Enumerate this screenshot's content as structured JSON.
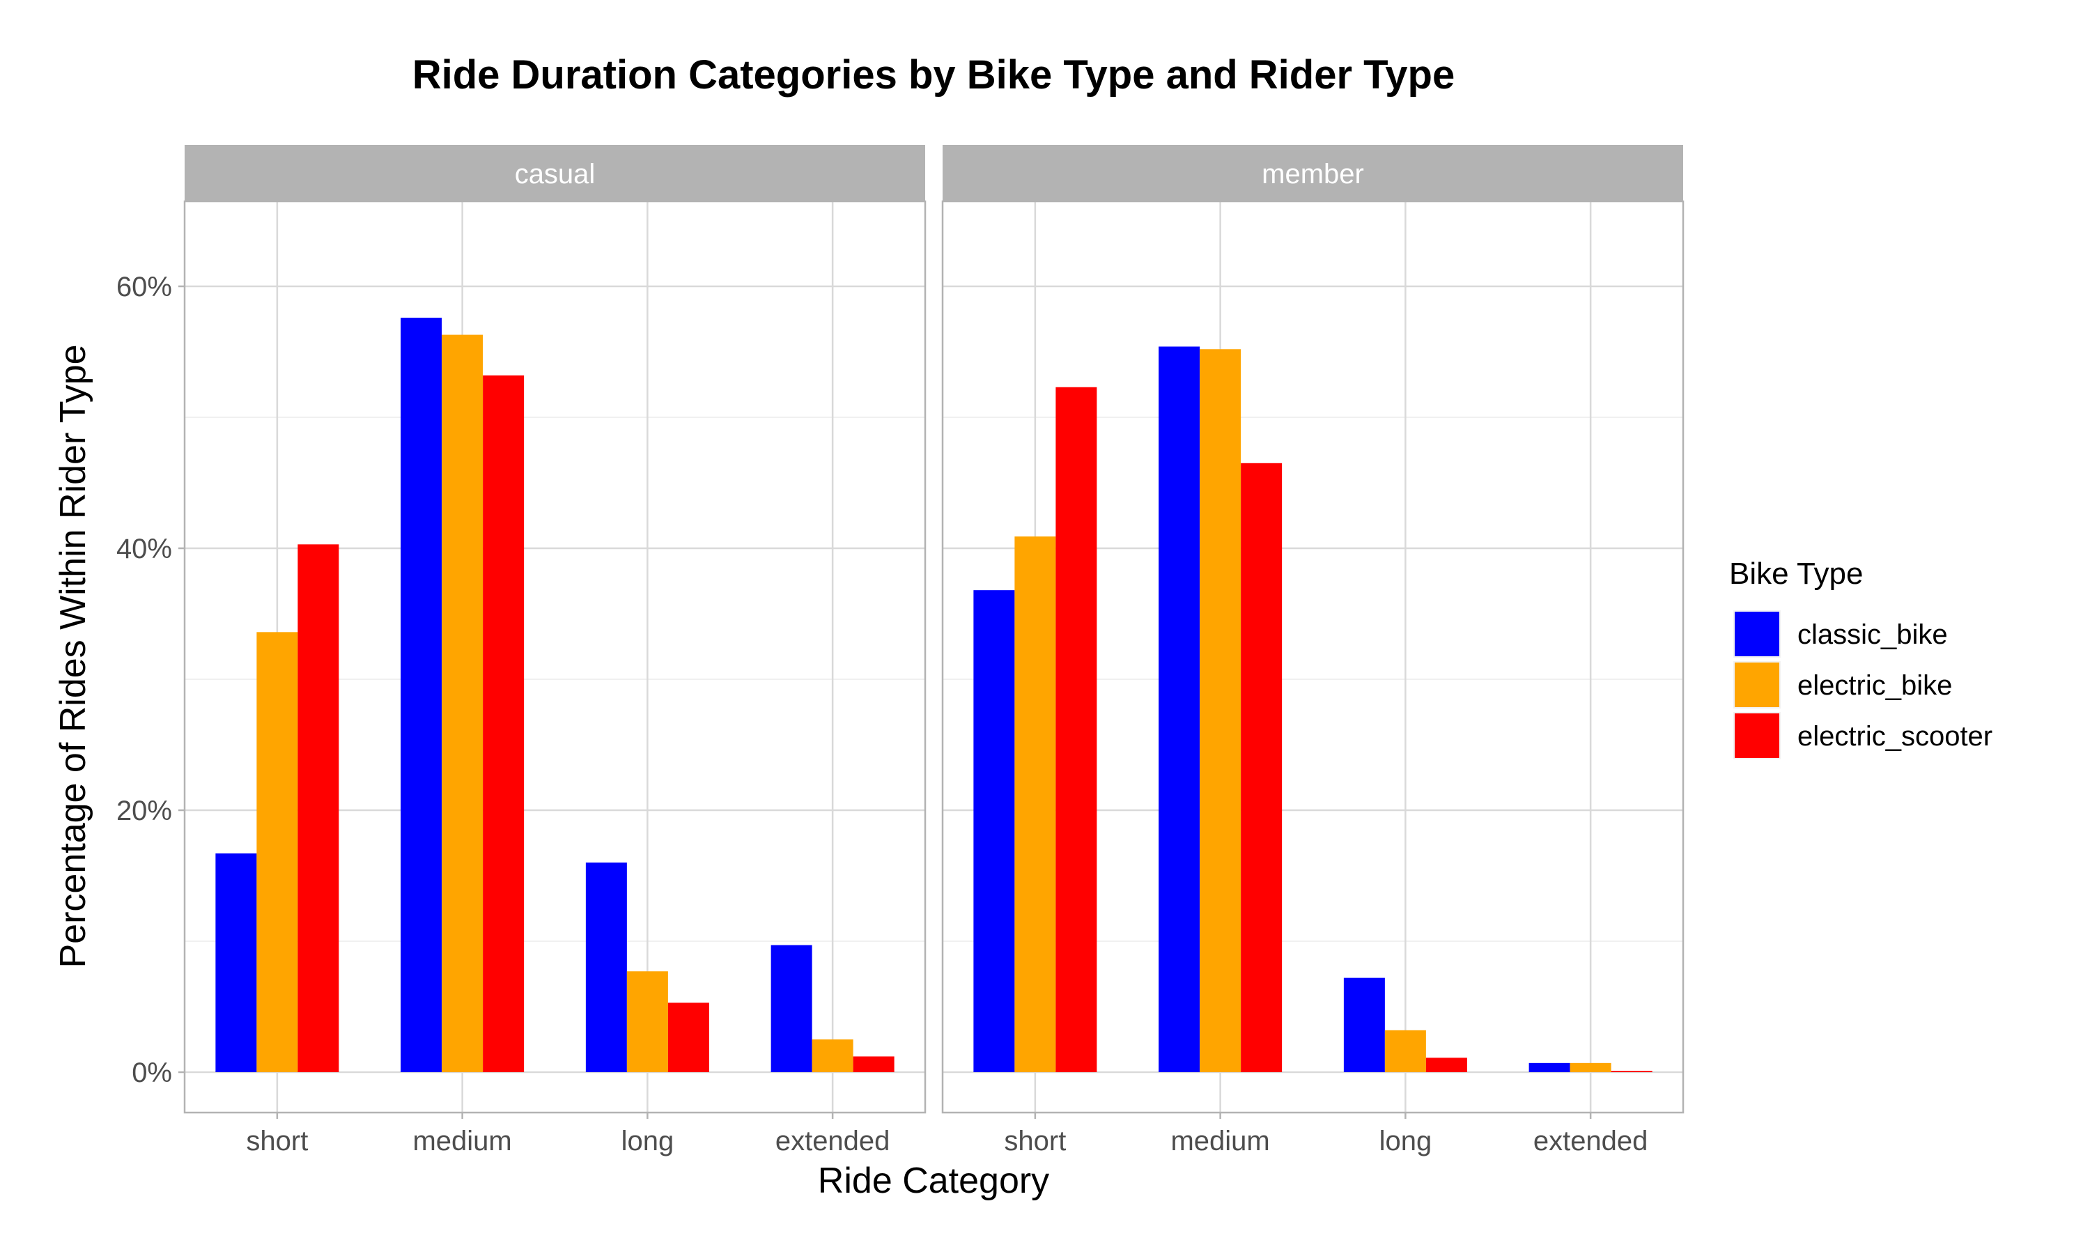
{
  "chart_data": {
    "type": "bar",
    "title": "Ride Duration Categories by Bike Type and Rider Type",
    "xlabel": "Ride Category",
    "ylabel": "Percentage of Rides Within Rider Type",
    "ylim": [
      0,
      0.665
    ],
    "yticks": [
      0,
      0.2,
      0.4,
      0.6
    ],
    "ytick_labels": [
      "0%",
      "20%",
      "40%",
      "60%"
    ],
    "grid": true,
    "legend_placement": "right",
    "legend_title": "Bike Type",
    "categories": [
      "short",
      "medium",
      "long",
      "extended"
    ],
    "series_names": [
      "classic_bike",
      "electric_bike",
      "electric_scooter"
    ],
    "colors": {
      "classic_bike": "#0000FF",
      "electric_bike": "#FFA500",
      "electric_scooter": "#FF0000",
      "strip": "#B3B3B3",
      "grid": "#D9D9D9",
      "panel_border": "#B3B3B3"
    },
    "facets": [
      {
        "label": "casual",
        "series": [
          {
            "name": "classic_bike",
            "values": [
              0.167,
              0.576,
              0.16,
              0.097
            ]
          },
          {
            "name": "electric_bike",
            "values": [
              0.336,
              0.563,
              0.077,
              0.025
            ]
          },
          {
            "name": "electric_scooter",
            "values": [
              0.403,
              0.532,
              0.053,
              0.012
            ]
          }
        ]
      },
      {
        "label": "member",
        "series": [
          {
            "name": "classic_bike",
            "values": [
              0.368,
              0.554,
              0.072,
              0.007
            ]
          },
          {
            "name": "electric_bike",
            "values": [
              0.409,
              0.552,
              0.032,
              0.007
            ]
          },
          {
            "name": "electric_scooter",
            "values": [
              0.523,
              0.465,
              0.011,
              0.001
            ]
          }
        ]
      }
    ]
  }
}
